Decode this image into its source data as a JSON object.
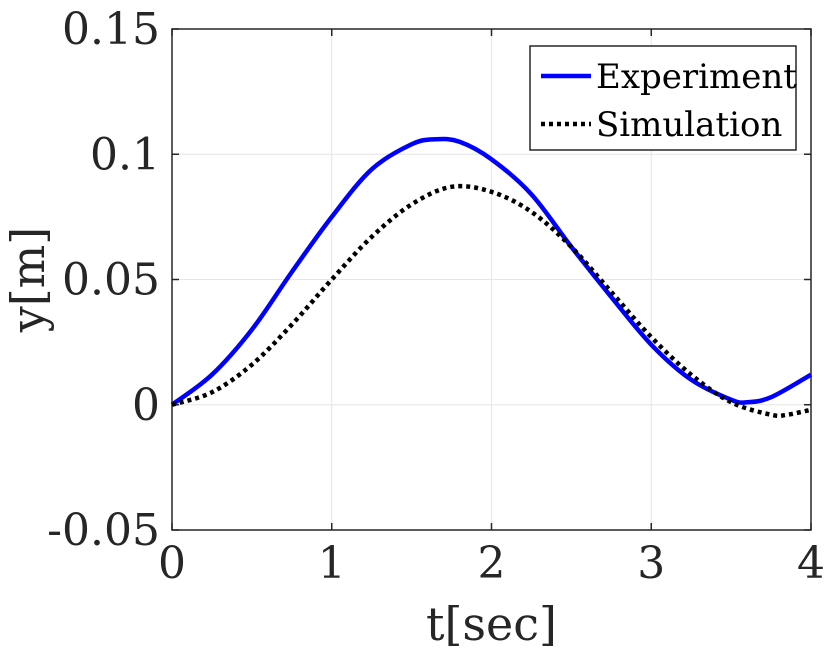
{
  "chart_data": {
    "type": "line",
    "title": "",
    "xlabel": "t[sec]",
    "ylabel": "y[m]",
    "xlim": [
      0,
      4
    ],
    "ylim": [
      -0.05,
      0.15
    ],
    "grid": true,
    "legend_position": "top-right",
    "x_ticks": [
      0,
      1,
      2,
      3,
      4
    ],
    "x_tick_labels": [
      "0",
      "1",
      "2",
      "3",
      "4"
    ],
    "y_ticks": [
      -0.05,
      0,
      0.05,
      0.1,
      0.15
    ],
    "y_tick_labels": [
      "-0.05",
      "0",
      "0.05",
      "0.1",
      "0.15"
    ],
    "series": [
      {
        "name": "Experiment",
        "style": "solid",
        "color": "#0000ff",
        "x": [
          0,
          0.25,
          0.5,
          0.75,
          1.0,
          1.25,
          1.5,
          1.65,
          1.8,
          2.0,
          2.25,
          2.5,
          2.75,
          3.0,
          3.25,
          3.5,
          3.6,
          3.75,
          4.0
        ],
        "y": [
          0,
          0.012,
          0.03,
          0.053,
          0.075,
          0.094,
          0.104,
          0.106,
          0.105,
          0.098,
          0.084,
          0.063,
          0.043,
          0.024,
          0.01,
          0.002,
          0.001,
          0.003,
          0.012
        ]
      },
      {
        "name": "Simulation",
        "style": "dotted",
        "color": "#000000",
        "x": [
          0,
          0.25,
          0.5,
          0.75,
          1.0,
          1.25,
          1.5,
          1.75,
          2.0,
          2.25,
          2.5,
          2.75,
          3.0,
          3.25,
          3.5,
          3.75,
          3.85,
          4.0
        ],
        "y": [
          0,
          0.005,
          0.016,
          0.032,
          0.05,
          0.067,
          0.08,
          0.087,
          0.085,
          0.077,
          0.063,
          0.045,
          0.027,
          0.012,
          0.001,
          -0.004,
          -0.004,
          -0.002
        ]
      }
    ]
  }
}
